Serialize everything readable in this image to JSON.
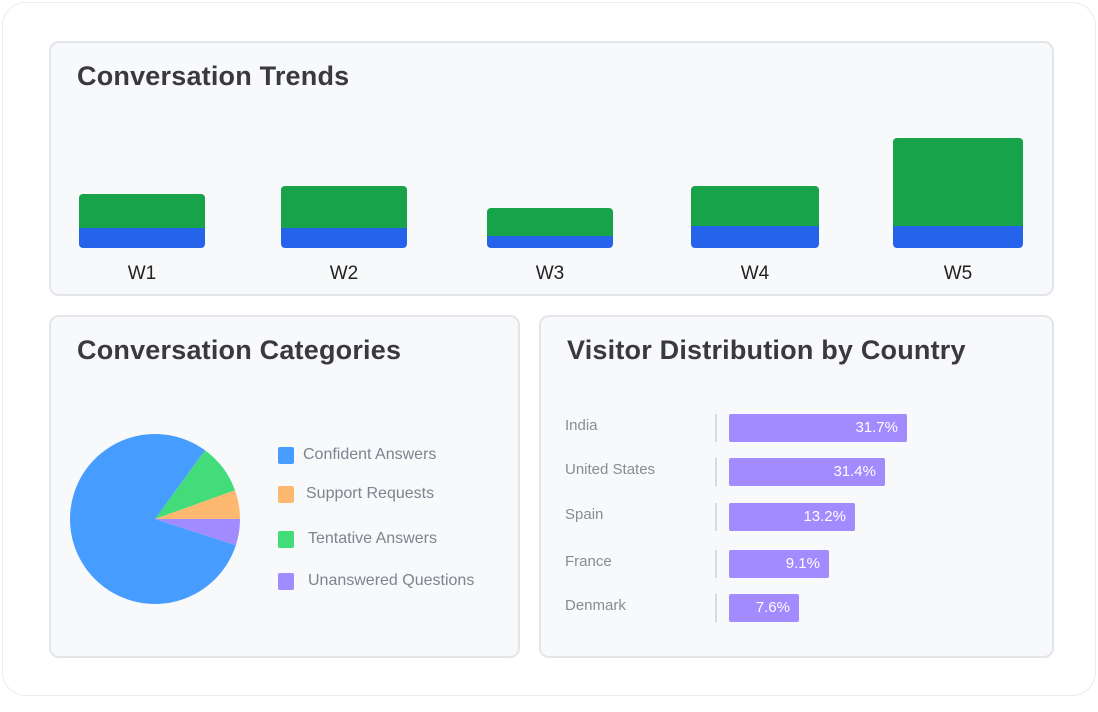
{
  "colors": {
    "trend_bottom": "#2563eb",
    "trend_top": "#16a34a",
    "country_bar": "#a18bff"
  },
  "chart_data": [
    {
      "type": "bar",
      "stacked": true,
      "title": "Conversation Trends",
      "categories": [
        "W1",
        "W2",
        "W3",
        "W4",
        "W5"
      ],
      "series": [
        {
          "values": [
            10,
            10,
            6,
            11,
            11
          ],
          "color": "#2563eb"
        },
        {
          "values": [
            17,
            21,
            14,
            20,
            44
          ],
          "color": "#16a34a"
        }
      ],
      "grid": false
    },
    {
      "type": "pie",
      "title": "Conversation Categories",
      "legend": "right",
      "slices": [
        {
          "label": "Confident Answers",
          "value": 80,
          "color": "#479dff"
        },
        {
          "label": "Support Requests",
          "value": 5.5,
          "color": "#ffb870"
        },
        {
          "label": "Tentative Answers",
          "value": 9.5,
          "color": "#43dc7a"
        },
        {
          "label": "Unanswered Questions",
          "value": 5,
          "color": "#a08bff"
        }
      ]
    },
    {
      "type": "bar",
      "orientation": "horizontal",
      "title": "Visitor Distribution by Country",
      "categories": [
        "India",
        "United States",
        "Spain",
        "France",
        "Denmark"
      ],
      "values": [
        31.7,
        31.4,
        13.2,
        9.1,
        7.6
      ],
      "labels": [
        "31.7%",
        "31.4%",
        "13.2%",
        "9.1%",
        "7.6%"
      ]
    }
  ]
}
